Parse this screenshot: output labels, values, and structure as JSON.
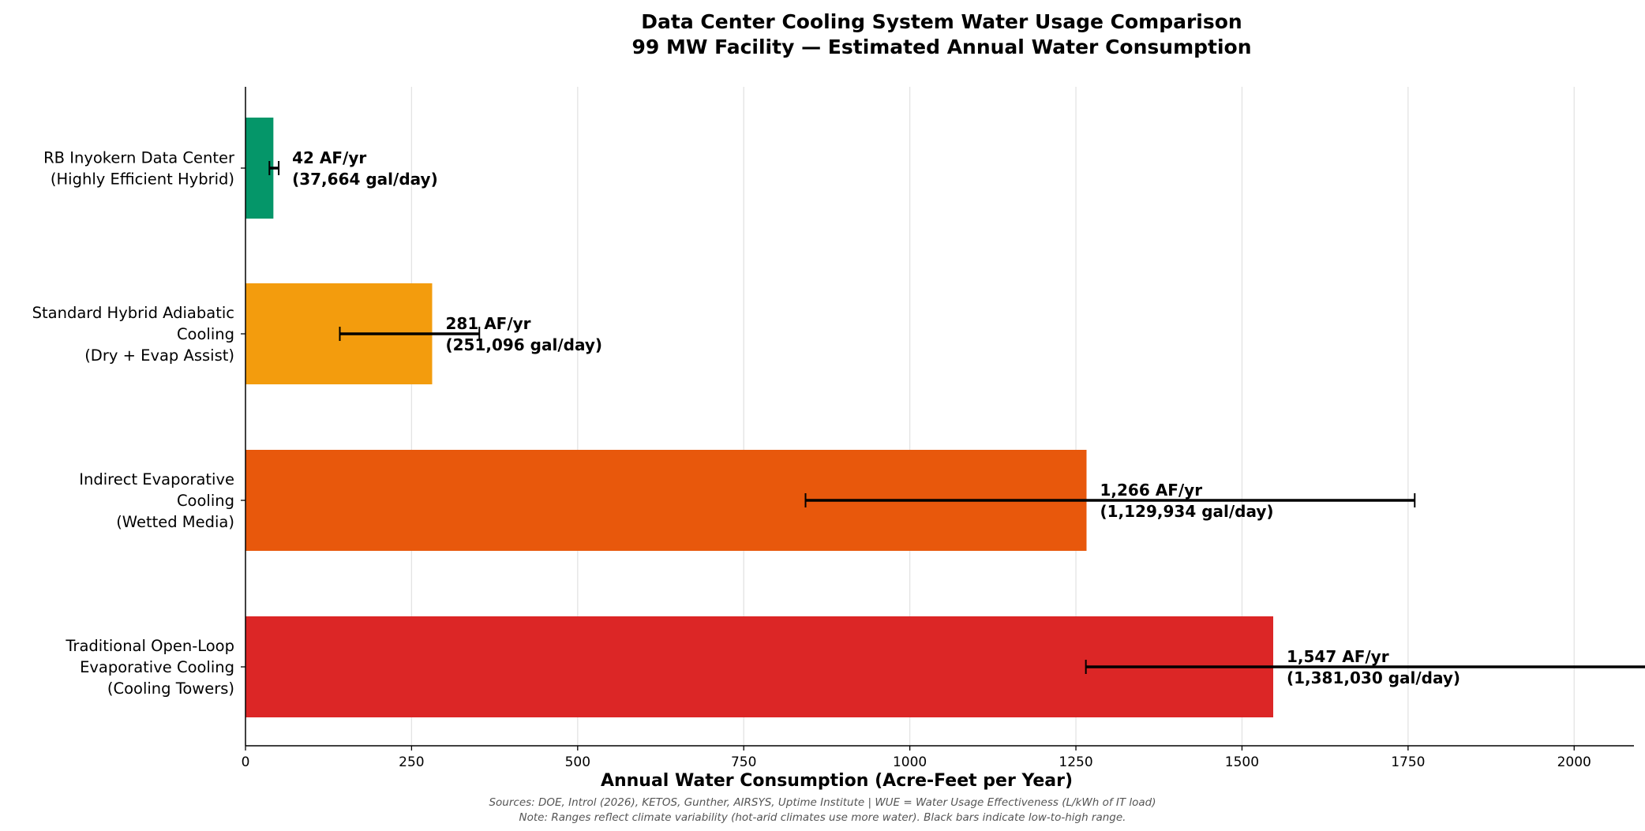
{
  "chart_data": {
    "type": "bar",
    "orientation": "horizontal",
    "title": "Data Center Cooling System Water Usage Comparison",
    "subtitle": "99 MW Facility — Estimated Annual Water Consumption",
    "xlabel": "Annual Water Consumption (Acre-Feet per Year)",
    "ylabel": "",
    "xlim": [
      0,
      2090
    ],
    "xticks": [
      0,
      250,
      500,
      750,
      1000,
      1250,
      1500,
      1750,
      2000
    ],
    "grid": "vertical",
    "categories": [
      [
        "RB Inyokern Data Center",
        "(Highly Efficient Hybrid)"
      ],
      [
        "Standard Hybrid Adiabatic",
        "Cooling",
        "(Dry + Evap Assist)"
      ],
      [
        "Indirect Evaporative",
        "Cooling",
        "(Wetted Media)"
      ],
      [
        "Traditional Open-Loop",
        "Evaporative Cooling",
        "(Cooling Towers)"
      ]
    ],
    "values": [
      42,
      281,
      1266,
      1547
    ],
    "ranges": [
      [
        36,
        50
      ],
      [
        142,
        352
      ],
      [
        843,
        1760
      ],
      [
        1265,
        2320
      ]
    ],
    "colors": [
      "#059669",
      "#f39c0d",
      "#e8580c",
      "#dc2626"
    ],
    "value_labels": [
      [
        "42 AF/yr",
        "(37,664 gal/day)"
      ],
      [
        "281 AF/yr",
        "(251,096 gal/day)"
      ],
      [
        "1,266 AF/yr",
        "(1,129,934 gal/day)"
      ],
      [
        "1,547 AF/yr",
        "(1,381,030 gal/day)"
      ]
    ]
  },
  "footer": {
    "sources": "Sources: DOE, Introl (2026), KETOS, Gunther, AIRSYS, Uptime Institute | WUE = Water Usage Effectiveness (L/kWh of IT load)",
    "note": "Note: Ranges reflect climate variability (hot-arid climates use more water). Black bars indicate low-to-high range."
  }
}
